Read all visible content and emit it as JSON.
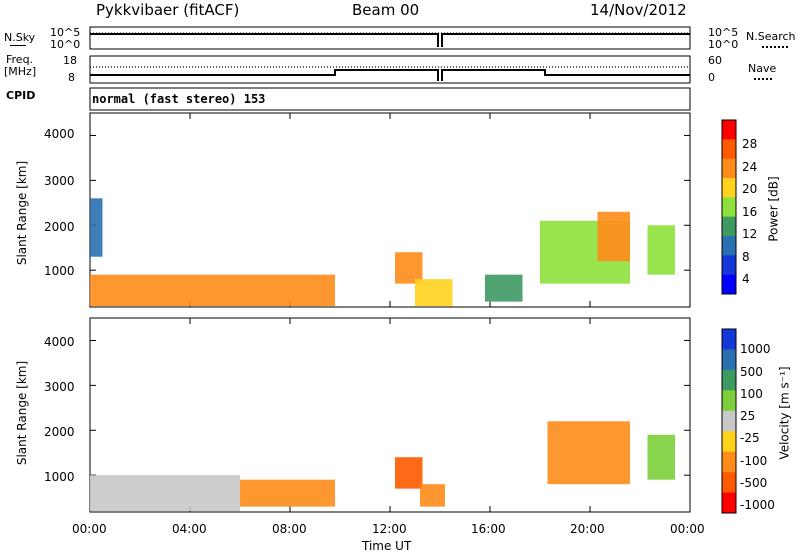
{
  "header": {
    "station": "Pykkvibaer (fitACF)",
    "beam": "Beam 00",
    "date": "14/Nov/2012"
  },
  "strip1": {
    "left_label": "N.Sky",
    "left_ticks": [
      "10^5",
      "10^0"
    ],
    "right_label": "N.Search",
    "right_ticks": [
      "10^5",
      "10^0"
    ]
  },
  "strip2": {
    "left_label_1": "Freq.",
    "left_label_2": "[MHz]",
    "left_ticks": [
      "18",
      "8"
    ],
    "right_label": "Nave",
    "right_ticks": [
      "60",
      "0"
    ]
  },
  "cpid": {
    "label": "CPID",
    "text": "normal (fast stereo) 153"
  },
  "panels": {
    "ylabel": "Slant Range [km]",
    "y_ticks": [
      "4000",
      "3000",
      "2000",
      "1000"
    ],
    "x_ticks": [
      "00:00",
      "04:00",
      "08:00",
      "12:00",
      "16:00",
      "20:00",
      "00:00"
    ],
    "xlabel": "Time UT"
  },
  "power_scale": {
    "label": "Power [dB]",
    "ticks": [
      "28",
      "24",
      "20",
      "16",
      "12",
      "8",
      "4"
    ],
    "colors": [
      "#ff0000",
      "#ff5a00",
      "#ff8c1a",
      "#ffd21e",
      "#8ee03c",
      "#3e9a62",
      "#2a6fb0",
      "#1438d8",
      "#0000ff"
    ]
  },
  "velocity_scale": {
    "label": "Velocity [m s⁻¹]",
    "ticks": [
      "1000",
      "500",
      "100",
      "25",
      "-25",
      "-100",
      "-500",
      "-1000"
    ],
    "colors": [
      "#1438d8",
      "#2a6fb0",
      "#3e9a62",
      "#7ccf3a",
      "#c8c8c8",
      "#ffd21e",
      "#ff8c1a",
      "#ff5a00",
      "#ff0000"
    ]
  },
  "chart_data": {
    "type": "heatmap",
    "title": "Pykkvibaer (fitACF) Beam 00 14/Nov/2012",
    "xlabel": "Time UT",
    "ylabel": "Slant Range [km]",
    "x_ticks": [
      "00:00",
      "04:00",
      "08:00",
      "12:00",
      "16:00",
      "20:00",
      "00:00"
    ],
    "xlim_hours": [
      0,
      24
    ],
    "ylim_km": [
      180,
      4500
    ],
    "y_ticks_km": [
      1000,
      2000,
      3000,
      4000
    ],
    "panels": [
      {
        "quantity": "Power [dB]",
        "colorbar_ticks": [
          4,
          8,
          12,
          16,
          20,
          24,
          28
        ],
        "regions": [
          {
            "t0": 0,
            "t1": 9.8,
            "r0": 200,
            "r1": 900,
            "value": 24
          },
          {
            "t0": 0,
            "t1": 0.5,
            "r0": 1300,
            "r1": 2600,
            "value": 8
          },
          {
            "t0": 12.2,
            "t1": 13.3,
            "r0": 700,
            "r1": 1400,
            "value": 24
          },
          {
            "t0": 13.0,
            "t1": 14.5,
            "r0": 200,
            "r1": 800,
            "value": 20
          },
          {
            "t0": 15.8,
            "t1": 17.3,
            "r0": 300,
            "r1": 900,
            "value": 12
          },
          {
            "t0": 18.0,
            "t1": 21.6,
            "r0": 700,
            "r1": 2100,
            "value": 16
          },
          {
            "t0": 20.3,
            "t1": 21.6,
            "r0": 1200,
            "r1": 2300,
            "value": 24
          },
          {
            "t0": 22.3,
            "t1": 23.4,
            "r0": 900,
            "r1": 2000,
            "value": 16
          }
        ]
      },
      {
        "quantity": "Velocity [m s^-1]",
        "colorbar_ticks": [
          -1000,
          -500,
          -100,
          -25,
          25,
          100,
          500,
          1000
        ],
        "regions": [
          {
            "t0": 0,
            "t1": 6.0,
            "r0": 200,
            "r1": 1000,
            "value": 25
          },
          {
            "t0": 6.0,
            "t1": 9.8,
            "r0": 300,
            "r1": 900,
            "value": -100
          },
          {
            "t0": 12.2,
            "t1": 13.3,
            "r0": 700,
            "r1": 1400,
            "value": -500
          },
          {
            "t0": 13.2,
            "t1": 14.2,
            "r0": 300,
            "r1": 800,
            "value": -100
          },
          {
            "t0": 18.3,
            "t1": 21.6,
            "r0": 800,
            "r1": 2200,
            "value": -100
          },
          {
            "t0": 22.3,
            "t1": 23.4,
            "r0": 900,
            "r1": 1900,
            "value": 100
          }
        ]
      }
    ],
    "series": [
      {
        "name": "N.Sky",
        "approx_value": "10^5"
      },
      {
        "name": "N.Search",
        "approx_value": "10^5"
      },
      {
        "name": "Freq. [MHz]",
        "values_hours": [
          [
            0,
            9.8,
            10.5
          ],
          [
            9.8,
            18.2,
            12.0
          ],
          [
            18.2,
            24,
            10.5
          ]
        ]
      },
      {
        "name": "Nave",
        "approx_value": 40
      }
    ],
    "cpid": "normal (fast stereo) 153"
  }
}
